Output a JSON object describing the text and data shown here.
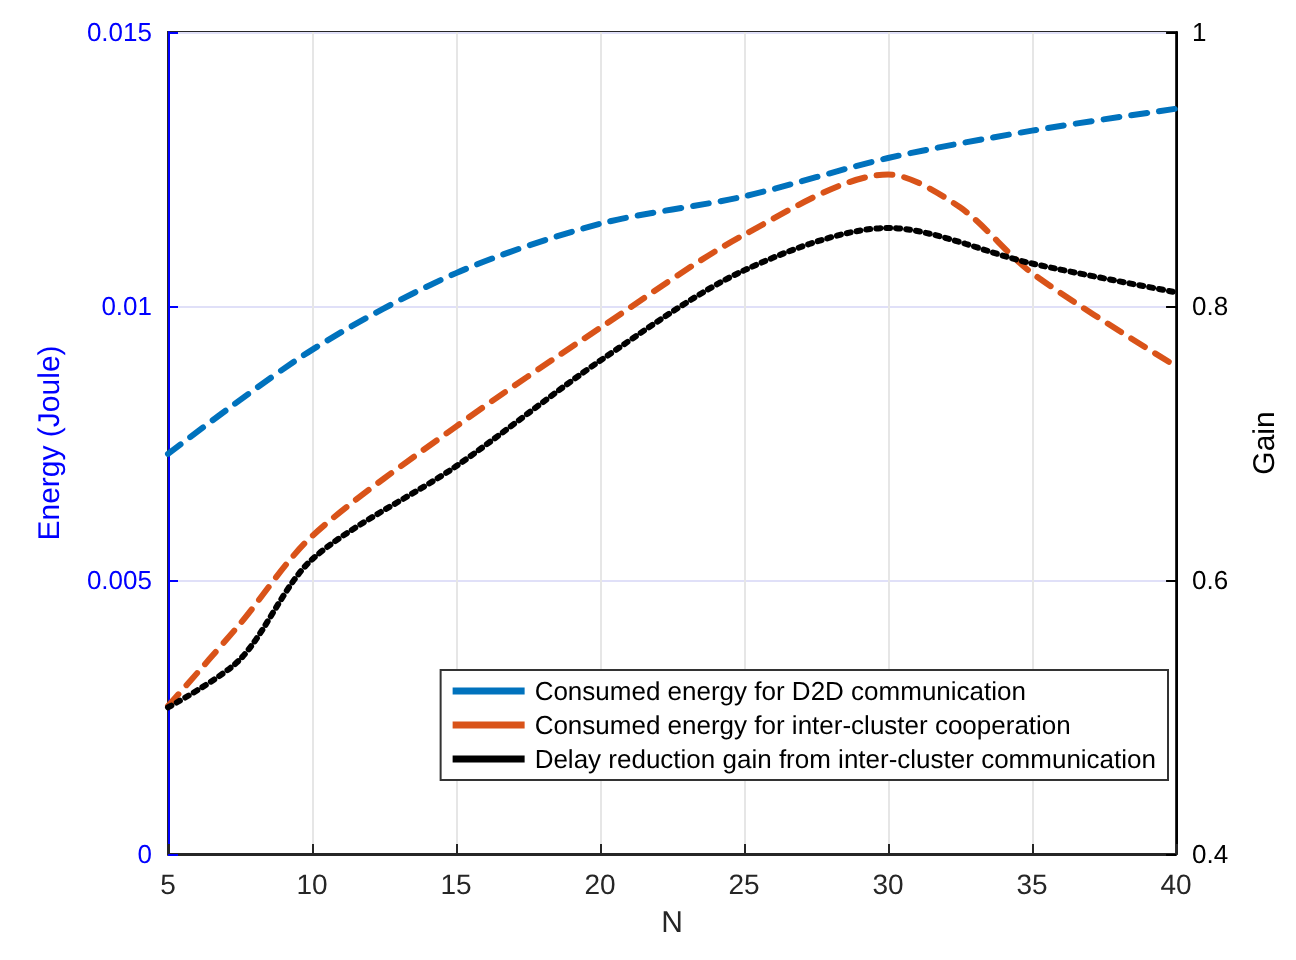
{
  "chart_data": {
    "type": "line",
    "xlabel": "N",
    "ylabel": "Energy (Joule)",
    "y2label": "Gain",
    "xlim": [
      5,
      40
    ],
    "xticks": [
      5,
      10,
      15,
      20,
      25,
      30,
      35,
      40
    ],
    "ylim": [
      0,
      0.015
    ],
    "yticks": [
      0,
      0.005,
      0.01,
      0.015
    ],
    "y2lim": [
      0.4,
      1
    ],
    "y2ticks": [
      0.4,
      0.6,
      0.8,
      1
    ],
    "grid": true,
    "legend": "bottom right",
    "marker": "none",
    "series": [
      {
        "name": "Consumed energy for D2D communication",
        "color": "#0072bd",
        "line_style": "dashed",
        "x": [
          5,
          10,
          15,
          20,
          25,
          30,
          35,
          40
        ],
        "values": [
          0.0073,
          0.0092,
          0.0106,
          0.0115,
          0.012,
          0.0127,
          0.0132,
          0.0136
        ]
      },
      {
        "name": "Consumed energy for inter-cluster cooperation",
        "color": "#d95319",
        "line_style": "dashed",
        "x": [
          5,
          7.5,
          10,
          15,
          20,
          25,
          30,
          32.5,
          35,
          40
        ],
        "values": [
          0.0027,
          0.0042,
          0.0058,
          0.0078,
          0.0096,
          0.0113,
          0.0124,
          0.0118,
          0.0106,
          0.0089
        ]
      },
      {
        "name": "Delay reduction gain from inter-cluster communication",
        "color": "#000000",
        "line_style": "dotted",
        "axis": "y2",
        "x": [
          5,
          7.5,
          10,
          15,
          20,
          25,
          30,
          35,
          40
        ],
        "values": [
          0.507,
          0.542,
          0.615,
          0.683,
          0.76,
          0.826,
          0.857,
          0.831,
          0.81
        ]
      }
    ]
  }
}
